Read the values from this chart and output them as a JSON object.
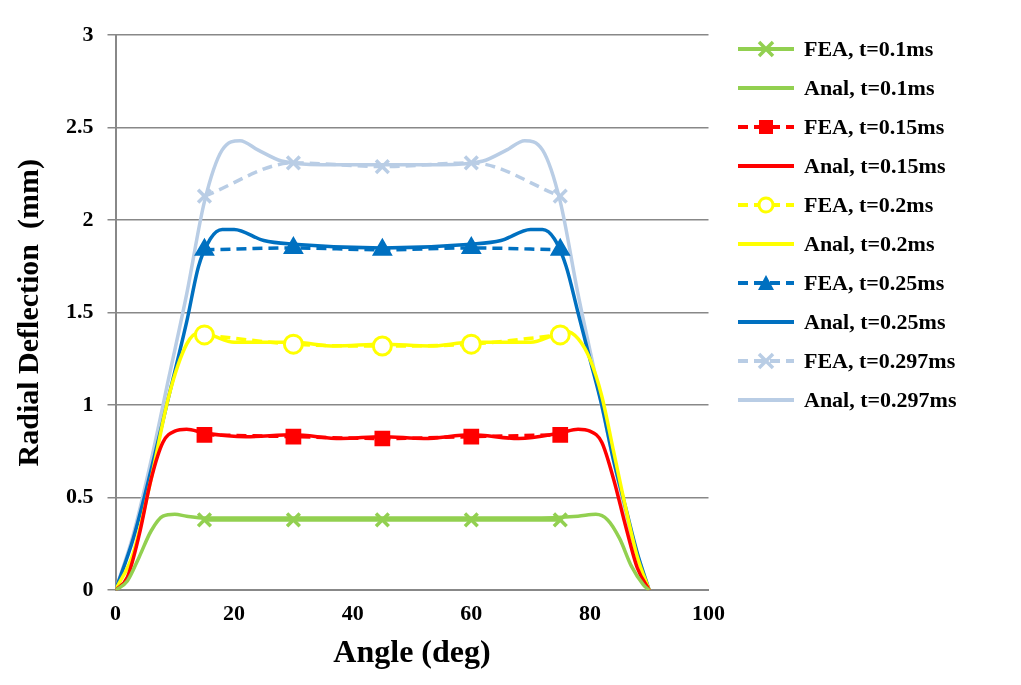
{
  "chart_data": {
    "type": "line",
    "xlabel": "Angle (deg)",
    "ylabel": "Radial Deflection  (mm)",
    "xlim": [
      0,
      100
    ],
    "xticks": [
      0,
      20,
      40,
      60,
      80,
      100
    ],
    "ylim": [
      0,
      3
    ],
    "yticks": [
      0,
      0.5,
      1,
      1.5,
      2,
      2.5,
      3
    ],
    "grid": "y",
    "legend": "right",
    "series": [
      {
        "name": "FEA, t=0.1ms",
        "color": "#92d050",
        "marker": "cross",
        "line_style": "solid",
        "x": [
          15,
          30,
          45,
          60,
          75
        ],
        "values": [
          0.38,
          0.38,
          0.38,
          0.38,
          0.38
        ]
      },
      {
        "name": "Anal, t=0.1ms",
        "color": "#92d050",
        "marker": "none",
        "line_style": "solid",
        "x": [
          0,
          2,
          4,
          6,
          8,
          10,
          12,
          15,
          20,
          30,
          40,
          50,
          60,
          70,
          78,
          81,
          83,
          85,
          87,
          89,
          90
        ],
        "values": [
          0,
          0.05,
          0.18,
          0.32,
          0.4,
          0.41,
          0.4,
          0.39,
          0.39,
          0.39,
          0.39,
          0.39,
          0.39,
          0.39,
          0.4,
          0.41,
          0.38,
          0.28,
          0.13,
          0.03,
          0
        ]
      },
      {
        "name": "FEA, t=0.15ms",
        "color": "#ff0000",
        "marker": "square",
        "line_style": "dashed",
        "x": [
          15,
          30,
          45,
          60,
          75
        ],
        "values": [
          0.84,
          0.83,
          0.82,
          0.83,
          0.84
        ]
      },
      {
        "name": "Anal, t=0.15ms",
        "color": "#ff0000",
        "marker": "none",
        "line_style": "solid",
        "x": [
          0,
          2,
          4,
          6,
          8,
          10,
          12,
          15,
          22,
          30,
          38,
          45,
          52,
          60,
          68,
          75,
          78,
          80,
          82,
          84,
          86,
          88,
          90
        ],
        "values": [
          0,
          0.07,
          0.3,
          0.6,
          0.8,
          0.86,
          0.87,
          0.85,
          0.83,
          0.84,
          0.82,
          0.83,
          0.82,
          0.84,
          0.82,
          0.85,
          0.87,
          0.86,
          0.8,
          0.6,
          0.35,
          0.12,
          0
        ]
      },
      {
        "name": "FEA, t=0.2ms",
        "color": "#ffff00",
        "marker": "circle",
        "line_style": "dashed",
        "x": [
          15,
          30,
          45,
          60,
          75
        ],
        "values": [
          1.38,
          1.33,
          1.32,
          1.33,
          1.38
        ]
      },
      {
        "name": "Anal, t=0.2ms",
        "color": "#ffff00",
        "marker": "none",
        "line_style": "solid",
        "x": [
          0,
          3,
          6,
          9,
          12,
          14,
          16,
          20,
          30,
          37,
          45,
          53,
          60,
          70,
          74,
          76,
          78,
          80,
          82,
          84,
          86,
          88,
          90
        ],
        "values": [
          0,
          0.2,
          0.6,
          1.05,
          1.33,
          1.39,
          1.38,
          1.34,
          1.34,
          1.32,
          1.33,
          1.32,
          1.34,
          1.34,
          1.38,
          1.4,
          1.36,
          1.25,
          1.05,
          0.75,
          0.45,
          0.18,
          0
        ]
      },
      {
        "name": "FEA, t=0.25ms",
        "color": "#0070c0",
        "marker": "triangle",
        "line_style": "dashed",
        "x": [
          15,
          30,
          45,
          60,
          75
        ],
        "values": [
          1.84,
          1.85,
          1.84,
          1.85,
          1.84
        ]
      },
      {
        "name": "Anal, t=0.25ms",
        "color": "#0070c0",
        "marker": "none",
        "line_style": "solid",
        "x": [
          0,
          3,
          6,
          9,
          12,
          14,
          16,
          18,
          20,
          25,
          30,
          45,
          60,
          65,
          70,
          72,
          74,
          76,
          78,
          80,
          82,
          84,
          86,
          88,
          90
        ],
        "values": [
          0,
          0.28,
          0.65,
          1.05,
          1.45,
          1.75,
          1.9,
          1.95,
          1.95,
          1.89,
          1.87,
          1.85,
          1.87,
          1.89,
          1.95,
          1.95,
          1.9,
          1.75,
          1.5,
          1.25,
          1,
          0.7,
          0.45,
          0.2,
          0
        ]
      },
      {
        "name": "FEA, t=0.297ms",
        "color": "#b9cde5",
        "marker": "cross",
        "line_style": "dashed",
        "x": [
          15,
          30,
          45,
          60,
          75
        ],
        "values": [
          2.13,
          2.31,
          2.29,
          2.31,
          2.13
        ]
      },
      {
        "name": "Anal, t=0.297ms",
        "color": "#b9cde5",
        "marker": "none",
        "line_style": "solid",
        "x": [
          0,
          3,
          6,
          9,
          12,
          15,
          18,
          21,
          24,
          28,
          35,
          45,
          55,
          62,
          66,
          69,
          72,
          75,
          78,
          81,
          84,
          87,
          90
        ],
        "values": [
          0,
          0.3,
          0.7,
          1.15,
          1.6,
          2.1,
          2.38,
          2.43,
          2.38,
          2.32,
          2.3,
          2.3,
          2.3,
          2.32,
          2.38,
          2.43,
          2.38,
          2.1,
          1.6,
          1.15,
          0.7,
          0.3,
          0
        ]
      }
    ]
  }
}
